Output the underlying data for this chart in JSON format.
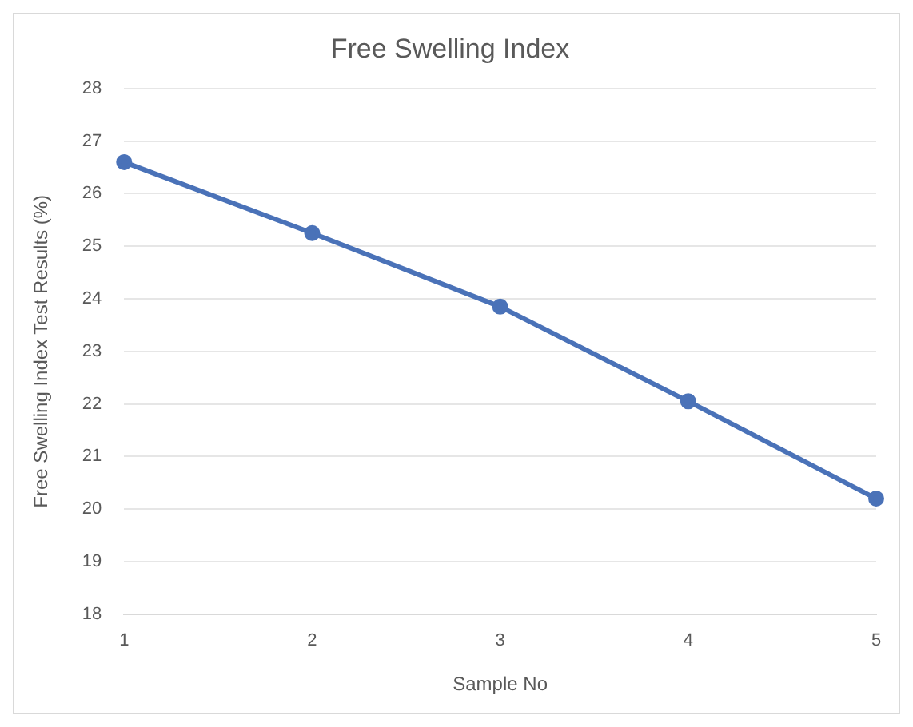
{
  "chart_data": {
    "type": "line",
    "title": "Free Swelling Index",
    "xlabel": "Sample No",
    "ylabel": "Free Swelling Index Test Results (%)",
    "categories": [
      "1",
      "2",
      "3",
      "4",
      "5"
    ],
    "series": [
      {
        "color": "#4a72b8",
        "values": [
          26.6,
          25.25,
          23.85,
          22.05,
          20.2
        ]
      }
    ],
    "ylim": [
      18,
      28
    ],
    "yticks": [
      18,
      19,
      20,
      21,
      22,
      23,
      24,
      25,
      26,
      27,
      28
    ],
    "grid": "y",
    "legend": false,
    "marker": "circle",
    "line_style": "solid"
  }
}
